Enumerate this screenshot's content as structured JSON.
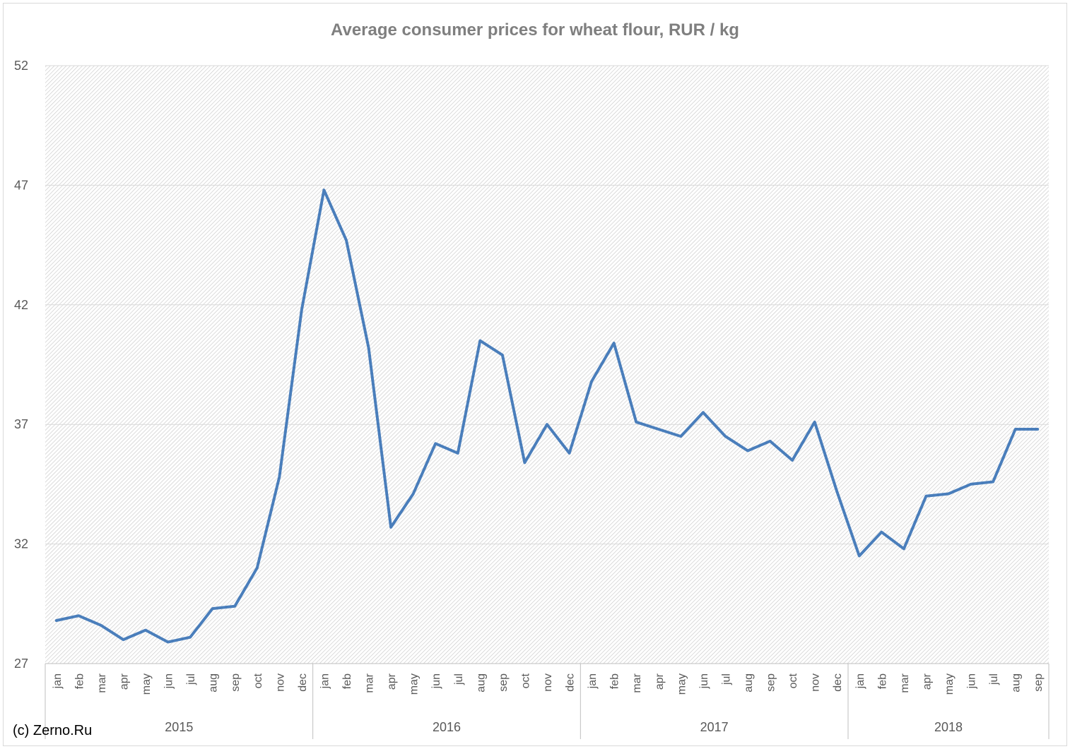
{
  "credit": "(c) Zerno.Ru",
  "colors": {
    "series": "#4a7ebb",
    "plot_hatch": "#c8c8c8",
    "grid": "#d9d9d9",
    "text": "#595959",
    "title": "#7f7f7f"
  },
  "chart_data": {
    "type": "line",
    "title": "Average consumer prices for wheat flour, RUR / kg",
    "xlabel": "",
    "ylabel": "",
    "ylim": [
      27,
      52
    ],
    "yticks": [
      "52",
      "47",
      "42",
      "37",
      "32",
      "27"
    ],
    "grid": true,
    "legend": "none",
    "plot_background": "diagonal hatch",
    "years": [
      {
        "label": "2015",
        "months": 12
      },
      {
        "label": "2016",
        "months": 12
      },
      {
        "label": "2017",
        "months": 12
      },
      {
        "label": "2018",
        "months": 9
      }
    ],
    "categories": [
      "jan",
      "feb",
      "mar",
      "apr",
      "may",
      "jun",
      "jul",
      "aug",
      "sep",
      "oct",
      "nov",
      "dec",
      "jan",
      "feb",
      "mar",
      "apr",
      "may",
      "jun",
      "jul",
      "aug",
      "sep",
      "oct",
      "nov",
      "dec",
      "jan",
      "feb",
      "mar",
      "apr",
      "may",
      "jun",
      "jul",
      "aug",
      "sep",
      "oct",
      "nov",
      "dec",
      "jan",
      "feb",
      "mar",
      "apr",
      "may",
      "jun",
      "jul",
      "aug",
      "sep"
    ],
    "series": [
      {
        "values": [
          28.8,
          29.0,
          28.6,
          28.0,
          28.4,
          27.9,
          28.1,
          29.3,
          29.4,
          31.0,
          34.8,
          41.8,
          46.8,
          44.7,
          40.2,
          32.7,
          34.1,
          36.2,
          35.8,
          40.5,
          39.9,
          35.4,
          37.0,
          35.8,
          38.8,
          40.4,
          37.1,
          36.8,
          36.5,
          37.5,
          36.5,
          35.9,
          36.3,
          35.5,
          37.1,
          34.2,
          31.5,
          32.5,
          31.8,
          34.0,
          34.1,
          34.5,
          34.6,
          36.8,
          36.8
        ]
      }
    ]
  }
}
